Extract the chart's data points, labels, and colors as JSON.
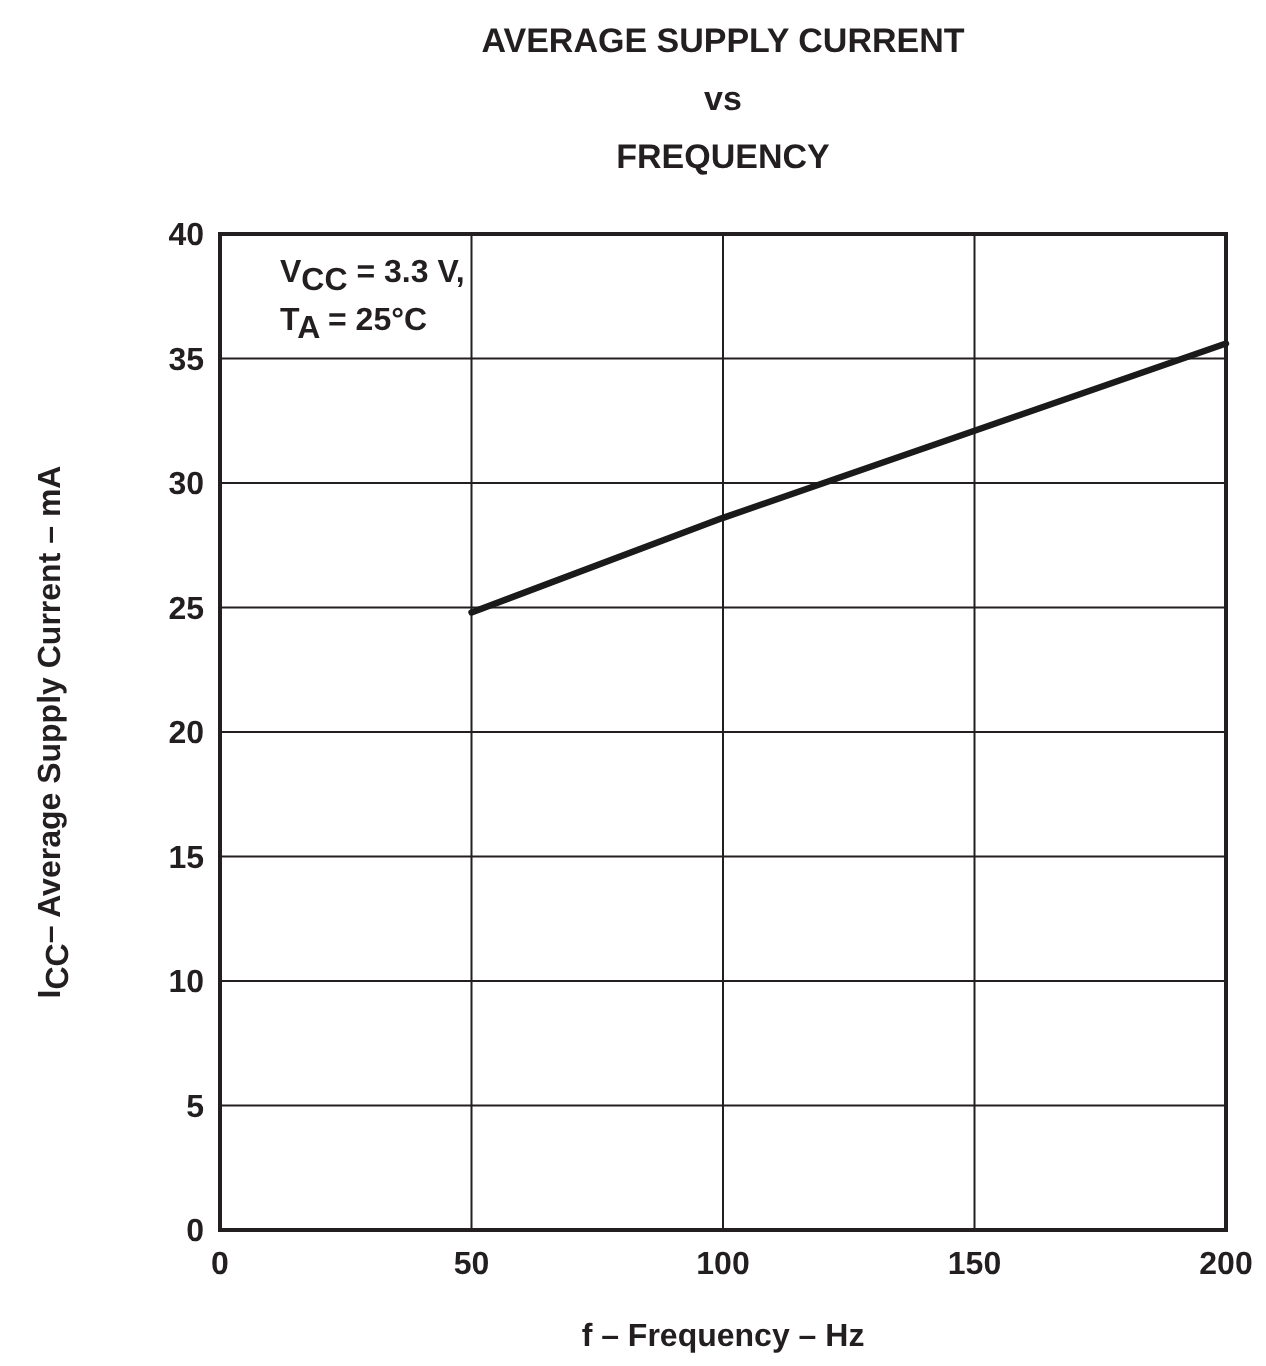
{
  "chart_data": {
    "type": "line",
    "title": "AVERAGE SUPPLY CURRENT\nvs\nFREQUENCY",
    "xlabel": "f – Frequency – Hz",
    "ylabel": "I$_{CC}$– Average Supply Current – mA",
    "annotations": [
      "V$_{CC}$ = 3.3 V,",
      "T$_{A}$ = 25°C"
    ],
    "x": [
      50,
      100,
      150,
      200
    ],
    "series": [
      {
        "color": "#1a1a1a",
        "values": [
          24.8,
          28.6,
          32.1,
          35.6
        ]
      }
    ],
    "xlim": [
      0,
      200
    ],
    "xticks": [
      0,
      50,
      100,
      150,
      200
    ],
    "ylim": [
      0,
      40
    ],
    "yticks": [
      0,
      5,
      10,
      15,
      20,
      25,
      30,
      35,
      40
    ],
    "grid": true,
    "marker": "none",
    "line_style": "solid"
  }
}
